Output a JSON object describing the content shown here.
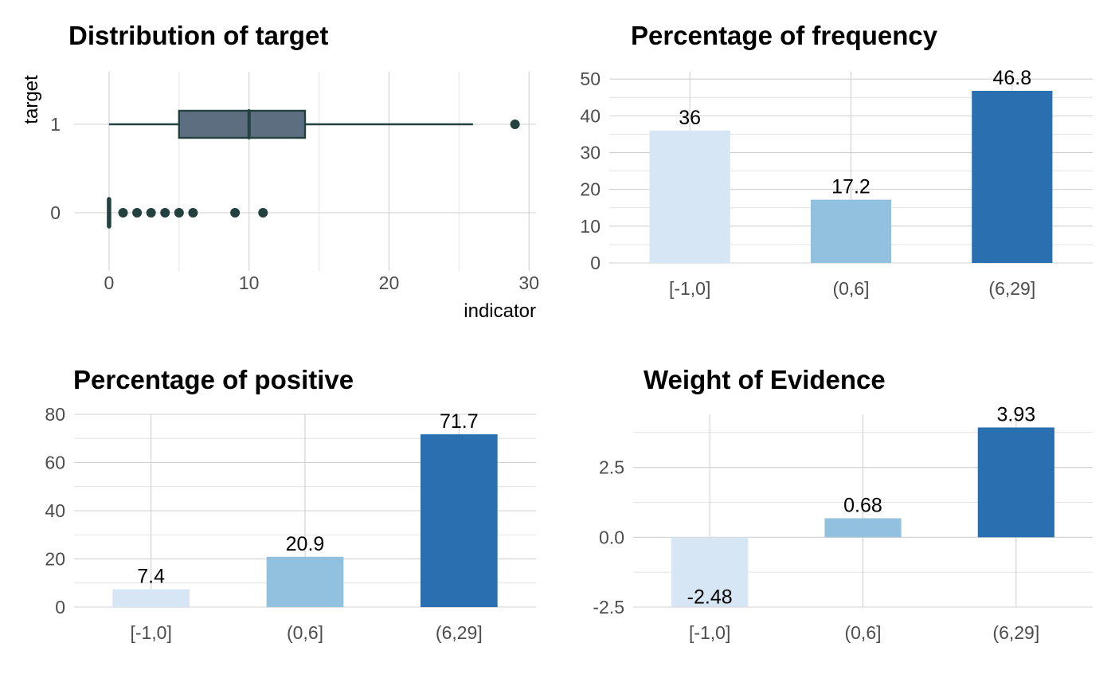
{
  "chart_data": [
    {
      "type": "boxplot",
      "title": "Distribution of target",
      "xlabel": "indicator",
      "ylabel": "target",
      "xlim": [
        -2.5,
        30.5
      ],
      "xticks": [
        0,
        10,
        20,
        30
      ],
      "categories": [
        "0",
        "1"
      ],
      "grid": true,
      "colors": {
        "box_fill": "#5d6e81",
        "line": "#22413f"
      },
      "boxes": [
        {
          "category": "1",
          "whisker_low": 0,
          "q1": 5,
          "median": 10,
          "q3": 14,
          "whisker_high": 26,
          "outliers": [
            29
          ]
        },
        {
          "category": "0",
          "whisker_low": 0,
          "q1": 0,
          "median": 0,
          "q3": 0,
          "whisker_high": 0,
          "outliers": [
            1,
            2,
            3,
            4,
            5,
            6,
            9,
            11
          ]
        }
      ]
    },
    {
      "type": "bar",
      "title": "Percentage of frequency",
      "categories": [
        "[-1,0]",
        "(0,6]",
        "(6,29]"
      ],
      "values": [
        36,
        17.2,
        46.8
      ],
      "labels": [
        "36",
        "17.2",
        "46.8"
      ],
      "ylim": [
        0,
        52
      ],
      "yticks": [
        0,
        10,
        20,
        30,
        40,
        50
      ],
      "grid": true,
      "colors": [
        "#d6e6f4",
        "#92c0df",
        "#2a6fb0"
      ]
    },
    {
      "type": "bar",
      "title": "Percentage of positive",
      "categories": [
        "[-1,0]",
        "(0,6]",
        "(6,29]"
      ],
      "values": [
        7.4,
        20.9,
        71.7
      ],
      "labels": [
        "7.4",
        "20.9",
        "71.7"
      ],
      "ylim": [
        0,
        80
      ],
      "yticks": [
        0,
        20,
        40,
        60,
        80
      ],
      "grid": true,
      "colors": [
        "#d6e6f4",
        "#92c0df",
        "#2a6fb0"
      ]
    },
    {
      "type": "bar",
      "title": "Weight of Evidence",
      "categories": [
        "[-1,0]",
        "(0,6]",
        "(6,29]"
      ],
      "values": [
        -2.48,
        0.68,
        3.93
      ],
      "labels": [
        "-2.48",
        "0.68",
        "3.93"
      ],
      "ylim": [
        -2.5,
        4.4
      ],
      "yticks": [
        -2.5,
        0.0,
        2.5
      ],
      "ytick_labels": [
        "-2.5",
        "0.0",
        "2.5"
      ],
      "grid": true,
      "colors": [
        "#d6e6f4",
        "#92c0df",
        "#2a6fb0"
      ]
    }
  ]
}
